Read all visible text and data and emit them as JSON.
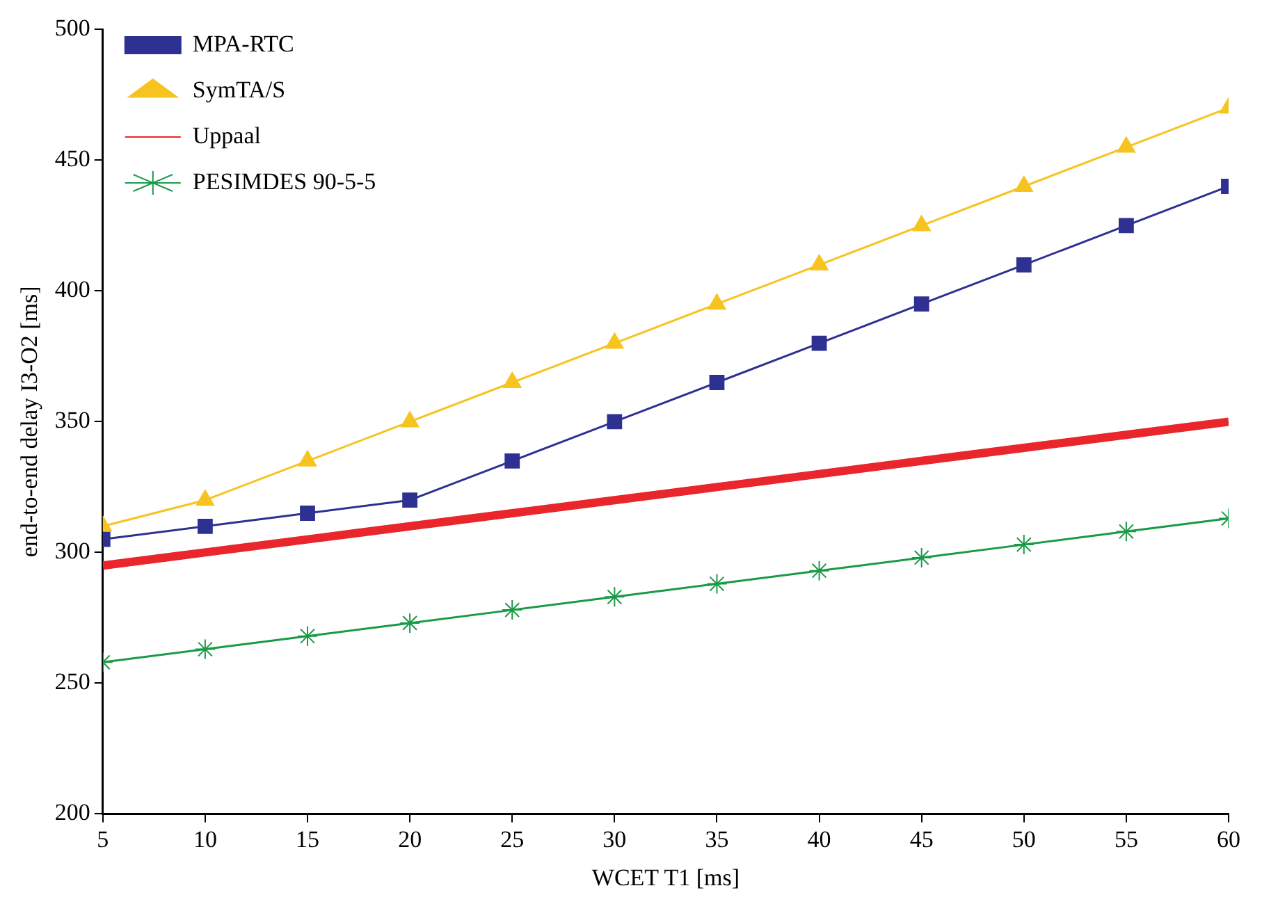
{
  "chart_data": {
    "type": "line",
    "xlabel": "WCET T1 [ms]",
    "ylabel": "end-to-end delay I3-O2 [ms]",
    "x": [
      5,
      10,
      15,
      20,
      25,
      30,
      35,
      40,
      45,
      50,
      55,
      60
    ],
    "xlim": [
      5,
      60
    ],
    "xticks": [
      5,
      10,
      15,
      20,
      25,
      30,
      35,
      40,
      45,
      50,
      55,
      60
    ],
    "ylim": [
      200,
      500
    ],
    "yticks": [
      200,
      250,
      300,
      350,
      400,
      450,
      500
    ],
    "grid": false,
    "legend": "top left",
    "line_style": "solid",
    "series": [
      {
        "name": "MPA-RTC",
        "color": "#2e3192",
        "marker": "square",
        "values": [
          305,
          310,
          315,
          320,
          335,
          350,
          365,
          380,
          395,
          410,
          425,
          440
        ]
      },
      {
        "name": "SymTA/S",
        "color": "#f7c31e",
        "marker": "triangle",
        "values": [
          310,
          320,
          335,
          350,
          365,
          380,
          395,
          410,
          425,
          440,
          455,
          470
        ]
      },
      {
        "name": "Uppaal",
        "color": "#e8262b",
        "marker": "none",
        "values": [
          295,
          300,
          305,
          310,
          315,
          320,
          325,
          330,
          335,
          340,
          345,
          350
        ]
      },
      {
        "name": "PESIMDES 90-5-5",
        "color": "#1a9a47",
        "marker": "cross",
        "values": [
          258,
          263,
          268,
          273,
          278,
          283,
          288,
          293,
          298,
          303,
          308,
          313
        ]
      }
    ]
  }
}
